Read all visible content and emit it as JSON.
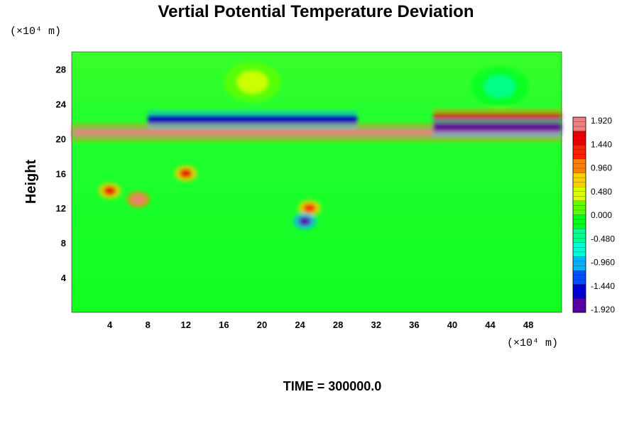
{
  "chart_data": {
    "type": "heatmap",
    "title": "Vertial Potential Temperature Deviation",
    "ylabel": "Height",
    "y_unit": "(×10⁴ m)",
    "x_unit": "(×10⁴ m)",
    "xlim": [
      0,
      51.5
    ],
    "ylim": [
      0,
      30
    ],
    "x_ticks": [
      "4",
      "8",
      "12",
      "16",
      "20",
      "24",
      "28",
      "32",
      "36",
      "40",
      "44",
      "48"
    ],
    "y_ticks": [
      "4",
      "8",
      "12",
      "16",
      "20",
      "24",
      "28"
    ],
    "colorbar": {
      "ticks": [
        "1.920",
        "1.440",
        "0.960",
        "0.480",
        "0.000",
        "-0.480",
        "-0.960",
        "-1.440",
        "-1.920"
      ],
      "range": [
        -1.92,
        1.92
      ],
      "colors": [
        "#5a00a8",
        "#0000d0",
        "#0050ff",
        "#00b4ff",
        "#00ffd8",
        "#00ff90",
        "#00ff20",
        "#60ff00",
        "#d8ff00",
        "#ffd000",
        "#ff8000",
        "#ff2000",
        "#e80000",
        "#f08080"
      ]
    },
    "background_value": 0.0,
    "features": [
      {
        "type": "band",
        "x0": 0,
        "x1": 51.5,
        "y_center": 20.7,
        "amplitude": 1.92
      },
      {
        "type": "band",
        "x0": 8,
        "x1": 30,
        "y_center": 22.2,
        "amplitude": -1.6
      },
      {
        "type": "band",
        "x0": 38,
        "x1": 51.5,
        "y_center": 22.4,
        "amplitude": 1.6
      },
      {
        "type": "band",
        "x0": 38,
        "x1": 51.5,
        "y_center": 21.3,
        "amplitude": -1.8
      },
      {
        "type": "blob",
        "x": 4,
        "y": 14,
        "amplitude": 1.6
      },
      {
        "type": "blob",
        "x": 7,
        "y": 13,
        "amplitude": 1.9
      },
      {
        "type": "blob",
        "x": 12,
        "y": 16,
        "amplitude": 1.5
      },
      {
        "type": "blob",
        "x": 25,
        "y": 12,
        "amplitude": 1.3
      },
      {
        "type": "blob",
        "x": 24.5,
        "y": 10.5,
        "amplitude": -1.7
      },
      {
        "type": "blob",
        "x": 19,
        "y": 26.5,
        "amplitude": 0.4
      },
      {
        "type": "blob",
        "x": 45,
        "y": 26,
        "amplitude": -0.3
      }
    ]
  },
  "footer": {
    "time_label": "TIME = 300000.0"
  }
}
